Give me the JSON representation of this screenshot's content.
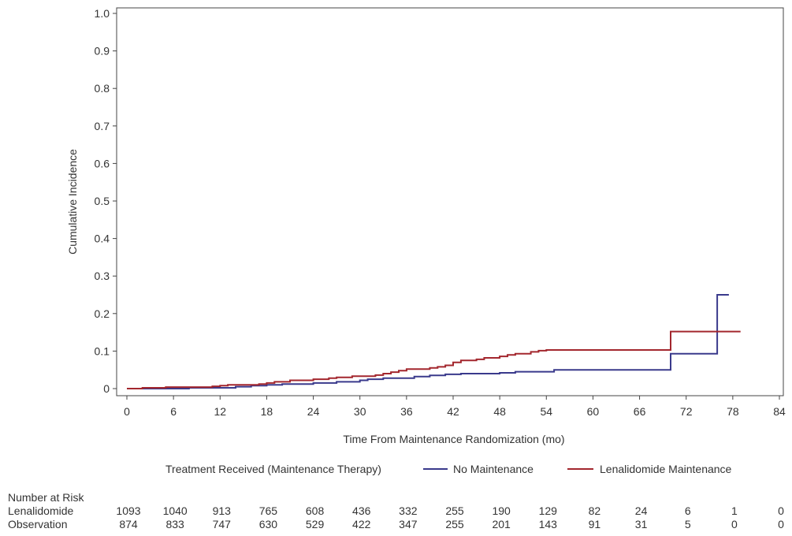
{
  "chart_data": {
    "type": "line",
    "xlabel": "Time From Maintenance Randomization (mo)",
    "ylabel": "Cumulative Incidence",
    "xlim": [
      0,
      84
    ],
    "ylim": [
      0,
      1.0
    ],
    "x_ticks": [
      0,
      6,
      12,
      18,
      24,
      30,
      36,
      42,
      48,
      54,
      60,
      66,
      72,
      78,
      84
    ],
    "y_ticks": [
      0,
      0.1,
      0.2,
      0.3,
      0.4,
      0.5,
      0.6,
      0.7,
      0.8,
      0.9,
      1.0
    ],
    "y_tick_labels": [
      "0",
      "0.1",
      "0.2",
      "0.3",
      "0.4",
      "0.5",
      "0.6",
      "0.7",
      "0.8",
      "0.9",
      "1.0"
    ],
    "grid": false,
    "legend": {
      "title": "Treatment Received (Maintenance Therapy)",
      "placement": "bottom"
    },
    "series": [
      {
        "name": "No Maintenance",
        "color": "#3a3a8c",
        "points": [
          [
            0,
            0
          ],
          [
            2,
            0
          ],
          [
            8,
            0.002
          ],
          [
            12,
            0.002
          ],
          [
            14,
            0.005
          ],
          [
            16,
            0.008
          ],
          [
            18,
            0.01
          ],
          [
            20,
            0.012
          ],
          [
            24,
            0.015
          ],
          [
            27,
            0.018
          ],
          [
            30,
            0.022
          ],
          [
            31,
            0.025
          ],
          [
            33,
            0.028
          ],
          [
            37,
            0.032
          ],
          [
            39,
            0.035
          ],
          [
            41,
            0.038
          ],
          [
            43,
            0.04
          ],
          [
            48,
            0.042
          ],
          [
            50,
            0.045
          ],
          [
            55,
            0.05
          ],
          [
            60,
            0.05
          ],
          [
            66,
            0.05
          ],
          [
            70,
            0.05
          ],
          [
            70,
            0.093
          ],
          [
            76,
            0.093
          ],
          [
            76,
            0.25
          ],
          [
            77.5,
            0.25
          ]
        ]
      },
      {
        "name": "Lenalidomide Maintenance",
        "color": "#a3272e",
        "points": [
          [
            0,
            0
          ],
          [
            2,
            0.002
          ],
          [
            5,
            0.004
          ],
          [
            11,
            0.006
          ],
          [
            12,
            0.008
          ],
          [
            13,
            0.01
          ],
          [
            17,
            0.012
          ],
          [
            18,
            0.015
          ],
          [
            19,
            0.018
          ],
          [
            21,
            0.022
          ],
          [
            24,
            0.025
          ],
          [
            26,
            0.028
          ],
          [
            27,
            0.03
          ],
          [
            29,
            0.033
          ],
          [
            32,
            0.036
          ],
          [
            33,
            0.04
          ],
          [
            34,
            0.044
          ],
          [
            35,
            0.048
          ],
          [
            36,
            0.052
          ],
          [
            39,
            0.055
          ],
          [
            40,
            0.058
          ],
          [
            41,
            0.062
          ],
          [
            42,
            0.07
          ],
          [
            43,
            0.075
          ],
          [
            45,
            0.078
          ],
          [
            46,
            0.082
          ],
          [
            48,
            0.086
          ],
          [
            49,
            0.09
          ],
          [
            50,
            0.093
          ],
          [
            52,
            0.098
          ],
          [
            53,
            0.101
          ],
          [
            54,
            0.103
          ],
          [
            60,
            0.103
          ],
          [
            66,
            0.103
          ],
          [
            70,
            0.103
          ],
          [
            70,
            0.152
          ],
          [
            79,
            0.152
          ]
        ]
      }
    ],
    "number_at_risk": {
      "title": "Number at Risk",
      "times": [
        0,
        6,
        12,
        18,
        24,
        30,
        36,
        42,
        48,
        54,
        60,
        66,
        72,
        78,
        84
      ],
      "rows": [
        {
          "label": "Lenalidomide",
          "values": [
            "1093",
            "1040",
            "913",
            "765",
            "608",
            "436",
            "332",
            "255",
            "190",
            "129",
            "82",
            "24",
            "6",
            "1",
            "0"
          ]
        },
        {
          "label": "Observation",
          "values": [
            "874",
            "833",
            "747",
            "630",
            "529",
            "422",
            "347",
            "255",
            "201",
            "143",
            "91",
            "31",
            "5",
            "0",
            "0"
          ]
        }
      ]
    }
  }
}
